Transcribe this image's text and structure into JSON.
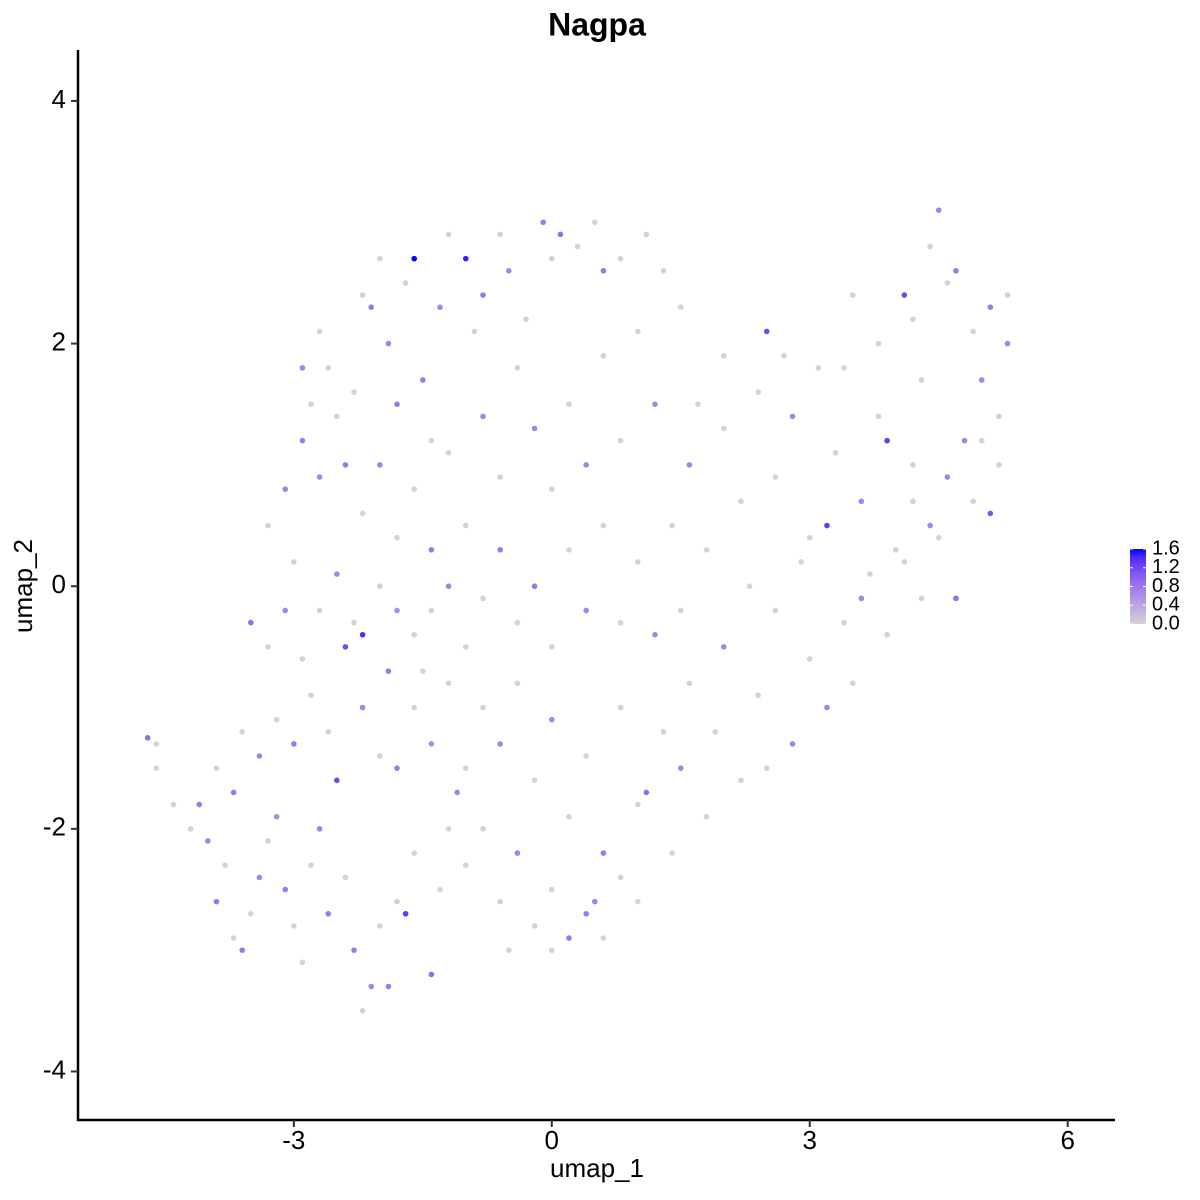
{
  "chart_data": {
    "type": "scatter",
    "title": "Nagpa",
    "xlabel": "umap_1",
    "ylabel": "umap_2",
    "x": [
      -4.7,
      -4.6,
      -4.6,
      -4.4,
      -4.2,
      -4.1,
      -4.0,
      -3.9,
      -3.8,
      -3.7,
      -3.6,
      -3.5,
      -3.4,
      -3.3,
      -3.2,
      -3.1,
      -3.0,
      -2.9,
      -2.8,
      -2.7,
      -2.6,
      -2.5,
      -2.4,
      -2.3,
      -2.2,
      -2.1,
      -2.0,
      -1.9,
      -1.8,
      -1.7,
      -1.6,
      -1.4,
      -1.3,
      -1.2,
      -1.1,
      -3.9,
      -3.7,
      -3.6,
      -3.4,
      -3.2,
      -3.0,
      -2.8,
      -2.6,
      -2.4,
      -2.2,
      -2.0,
      -1.9,
      -1.8,
      -1.6,
      -1.5,
      -1.4,
      -1.2,
      -1.0,
      -3.5,
      -3.3,
      -3.1,
      -2.9,
      -2.7,
      -2.5,
      -2.3,
      -2.2,
      -2.0,
      -1.8,
      -1.6,
      -3.3,
      -3.1,
      -3.0,
      -2.9,
      -2.8,
      -2.7,
      -2.6,
      -2.9,
      -2.7,
      -2.5,
      -2.4,
      -2.3,
      -2.2,
      -2.1,
      -2.0,
      -1.9,
      -1.8,
      -1.7,
      -1.6,
      -1.5,
      -1.4,
      -1.3,
      -1.2,
      -1.0,
      -0.9,
      -0.8,
      -0.6,
      -0.5,
      -0.3,
      -0.1,
      0.0,
      0.1,
      0.3,
      0.5,
      0.6,
      0.8,
      1.1,
      -2.2,
      -2.0,
      -1.8,
      -1.6,
      -1.4,
      -1.2,
      -1.0,
      -0.8,
      -0.6,
      -0.4,
      -0.2,
      0.0,
      0.2,
      0.4,
      0.6,
      0.8,
      1.0,
      1.2,
      -1.4,
      -1.2,
      -1.0,
      -0.8,
      -0.6,
      -0.4,
      -0.2,
      0.0,
      0.2,
      0.4,
      0.6,
      0.8,
      1.0,
      1.2,
      -0.8,
      -0.6,
      -0.4,
      -0.2,
      0.0,
      0.2,
      0.4,
      0.6,
      0.8,
      1.0,
      1.1,
      1.3,
      -1.0,
      -0.8,
      -0.6,
      -0.4,
      -0.2,
      0.0,
      0.2,
      0.4,
      0.5,
      0.6,
      0.8,
      1.0,
      -0.5,
      0.0,
      1.4,
      1.5,
      1.6,
      1.8,
      1.9,
      2.0,
      2.2,
      2.4,
      2.5,
      2.6,
      2.8,
      3.0,
      3.2,
      3.4,
      3.5,
      3.7,
      3.9,
      4.1,
      4.3,
      4.5,
      4.7,
      4.9,
      5.1,
      5.2,
      1.4,
      1.6,
      1.8,
      2.0,
      2.2,
      2.4,
      2.5,
      2.6,
      2.8,
      3.0,
      3.2,
      3.3,
      3.4,
      3.5,
      3.6,
      3.8,
      3.9,
      4.0,
      4.1,
      4.2,
      4.3,
      4.4,
      4.5,
      4.6,
      4.7,
      4.8,
      4.9,
      5.0,
      5.1,
      5.2,
      5.3,
      5.3,
      4.4,
      4.2,
      3.8,
      3.1,
      2.7,
      2.0,
      1.7,
      1.5,
      2.3,
      2.9,
      3.6,
      4.2,
      4.6,
      5.0,
      1.3,
      1.5
    ],
    "y": [
      -1.25,
      -1.3,
      -1.5,
      -1.8,
      -2.0,
      -1.8,
      -2.1,
      -2.6,
      -2.3,
      -2.9,
      -3.0,
      -2.7,
      -2.4,
      -2.1,
      -1.9,
      -2.5,
      -2.8,
      -3.1,
      -2.3,
      -2.0,
      -2.7,
      -1.6,
      -2.4,
      -3.0,
      -3.5,
      -3.3,
      -2.8,
      -3.3,
      -2.6,
      -2.7,
      -2.2,
      -3.2,
      -2.5,
      -2.0,
      -1.7,
      -1.5,
      -1.7,
      -1.2,
      -1.4,
      -1.1,
      -1.3,
      -0.9,
      -1.2,
      -0.5,
      -1.0,
      -1.4,
      -0.7,
      -1.5,
      -1.0,
      -0.7,
      -1.3,
      -0.8,
      -1.5,
      -0.3,
      -0.5,
      -0.2,
      -0.6,
      -0.2,
      0.1,
      -0.3,
      -0.4,
      0.0,
      -0.2,
      -0.4,
      0.5,
      0.8,
      0.2,
      1.2,
      1.5,
      0.9,
      1.8,
      1.8,
      2.1,
      1.4,
      1.0,
      1.6,
      2.4,
      2.3,
      2.7,
      2.0,
      1.5,
      2.5,
      2.7,
      1.7,
      1.2,
      2.3,
      2.9,
      2.7,
      2.1,
      2.4,
      2.9,
      2.6,
      2.2,
      3.0,
      2.7,
      2.9,
      2.8,
      3.0,
      2.6,
      2.7,
      2.9,
      0.6,
      1.0,
      0.4,
      0.8,
      0.3,
      1.1,
      0.5,
      1.4,
      0.9,
      1.8,
      1.3,
      0.8,
      1.5,
      1.0,
      1.9,
      1.2,
      2.1,
      1.5,
      -0.2,
      0.0,
      -0.5,
      -0.1,
      0.3,
      -0.3,
      0.0,
      -0.5,
      0.3,
      -0.2,
      0.5,
      -0.3,
      0.2,
      -0.4,
      -1.0,
      -1.3,
      -0.8,
      -1.6,
      -1.1,
      -1.9,
      -1.4,
      -2.2,
      -1.0,
      -1.8,
      -1.7,
      -1.2,
      -2.3,
      -2.0,
      -2.6,
      -2.2,
      -2.8,
      -2.5,
      -2.9,
      -2.7,
      -2.6,
      -2.9,
      -2.4,
      -2.6,
      -3.0,
      -3.0,
      -2.2,
      -1.5,
      -0.8,
      -1.9,
      -1.2,
      -0.5,
      -1.6,
      -0.9,
      -1.5,
      -0.2,
      -1.3,
      -0.6,
      -1.0,
      -0.3,
      -0.8,
      0.1,
      -0.4,
      0.2,
      -0.1,
      0.4,
      -0.1,
      0.7,
      0.6,
      1.0,
      0.5,
      1.0,
      0.3,
      1.3,
      0.7,
      1.6,
      2.1,
      0.9,
      1.4,
      0.4,
      0.5,
      1.1,
      1.8,
      2.4,
      0.7,
      1.4,
      1.2,
      0.3,
      2.4,
      1.0,
      1.7,
      0.5,
      3.1,
      2.5,
      2.6,
      1.2,
      2.1,
      1.7,
      2.3,
      1.4,
      2.0,
      2.4,
      2.8,
      2.2,
      2.0,
      1.8,
      1.9,
      1.9,
      1.5,
      -0.2,
      0.0,
      0.2,
      -0.1,
      0.7,
      0.9,
      1.2,
      2.6,
      2.3
    ],
    "expression": [
      0.9,
      0,
      0,
      0,
      0,
      0.8,
      0.7,
      0.8,
      0,
      0,
      0.8,
      0,
      0.7,
      0,
      0.6,
      0.8,
      0,
      0,
      0,
      0.7,
      0.8,
      1.2,
      0,
      0.8,
      0,
      0.7,
      0,
      0.8,
      0,
      1.3,
      0,
      0.9,
      0,
      0,
      0.7,
      0,
      0.8,
      0,
      0.7,
      0,
      0.8,
      0,
      0,
      1.2,
      0.7,
      0,
      0.8,
      0.8,
      0,
      0,
      0.6,
      0,
      0,
      0.9,
      0,
      0.7,
      0,
      0,
      0.7,
      0,
      1.4,
      0,
      0.6,
      0,
      0,
      0.7,
      0,
      0.8,
      0,
      0.7,
      0,
      0.7,
      0,
      0,
      0.8,
      0,
      0,
      0.8,
      0,
      0.7,
      0.8,
      0,
      1.6,
      0.8,
      0,
      0.7,
      0,
      1.5,
      0,
      0.8,
      0,
      0.7,
      0,
      0.8,
      0,
      0.9,
      0,
      0,
      0.8,
      0,
      0,
      0,
      0.7,
      0,
      0,
      0.8,
      0,
      0,
      0.7,
      0,
      0,
      0.7,
      0,
      0,
      0.7,
      0,
      0,
      0,
      0.7,
      0,
      0.7,
      0,
      0,
      0.8,
      0,
      0.8,
      0,
      0,
      0.7,
      0,
      0,
      0,
      0.7,
      0,
      0.7,
      0,
      0,
      0.7,
      0,
      0,
      0.8,
      0,
      0,
      0.9,
      0,
      0,
      0,
      0,
      0.7,
      0,
      0,
      0.8,
      0.8,
      0.7,
      0,
      0,
      0,
      0,
      0,
      0,
      0.7,
      0,
      0,
      0,
      0.7,
      0,
      0,
      0,
      0,
      0.7,
      0,
      0.7,
      0,
      0,
      0,
      0,
      0,
      0,
      0,
      0.9,
      0,
      1.1,
      0,
      0,
      0.7,
      0,
      0,
      0,
      0,
      1.2,
      0,
      0.7,
      0,
      1.3,
      0,
      0,
      0,
      0.7,
      0,
      1.3,
      0,
      1.2,
      0,
      0,
      0.7,
      0.7,
      0,
      0.8,
      0.7,
      0,
      0.7,
      0.8,
      0,
      0.7,
      0,
      0,
      0,
      0,
      0,
      0,
      0,
      0,
      0,
      0,
      0,
      0.7,
      0,
      0.7,
      0,
      0,
      0
    ],
    "xlim": [
      -5.51,
      6.55
    ],
    "ylim": [
      -4.4,
      4.42
    ],
    "xticks": [
      -3,
      0,
      3,
      6
    ],
    "yticks": [
      -4,
      -2,
      0,
      2,
      4
    ],
    "colorbar": {
      "lim": [
        0,
        1.6
      ],
      "ticks": [
        {
          "value": 0,
          "label": "0.0"
        },
        0.4,
        0.8,
        1.2,
        1.6
      ],
      "colors": [
        "#d3d3d3",
        "#0000ff"
      ]
    }
  }
}
